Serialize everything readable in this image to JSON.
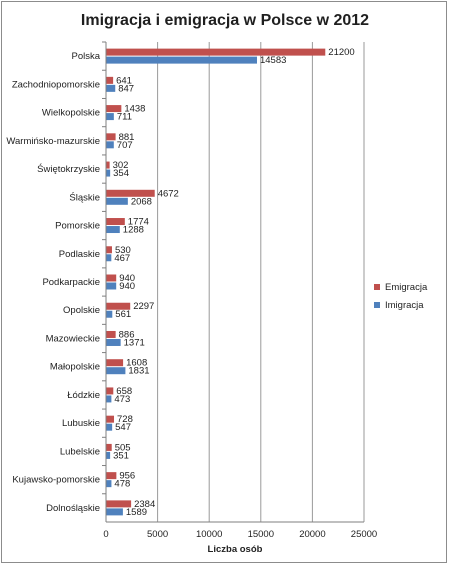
{
  "chart_data": {
    "type": "bar",
    "orientation": "horizontal",
    "title": "Imigracja i emigracja w Polsce w 2012",
    "xlabel": "Liczba osób",
    "ylabel": "",
    "xlim": [
      0,
      25000
    ],
    "xticks": [
      0,
      5000,
      10000,
      15000,
      20000,
      25000
    ],
    "grid": "vertical",
    "legend_position": "right",
    "categories": [
      "Polska",
      "Zachodniopomorskie",
      "Wielkopolskie",
      "Warmińsko-mazurskie",
      "Świętokrzyskie",
      "Śląskie",
      "Pomorskie",
      "Podlaskie",
      "Podkarpackie",
      "Opolskie",
      "Mazowieckie",
      "Małopolskie",
      "Łódzkie",
      "Lubuskie",
      "Lubelskie",
      "Kujawsko-pomorskie",
      "Dolnośląskie"
    ],
    "series": [
      {
        "name": "Emigracja",
        "color": "#c0504d",
        "values": [
          21200,
          641,
          1438,
          881,
          302,
          4672,
          1774,
          530,
          940,
          2297,
          886,
          1608,
          658,
          728,
          505,
          956,
          2384
        ]
      },
      {
        "name": "Imigracja",
        "color": "#4f81bd",
        "values": [
          14583,
          847,
          711,
          707,
          354,
          2068,
          1288,
          467,
          940,
          561,
          1371,
          1831,
          473,
          547,
          351,
          478,
          1589
        ]
      }
    ]
  }
}
